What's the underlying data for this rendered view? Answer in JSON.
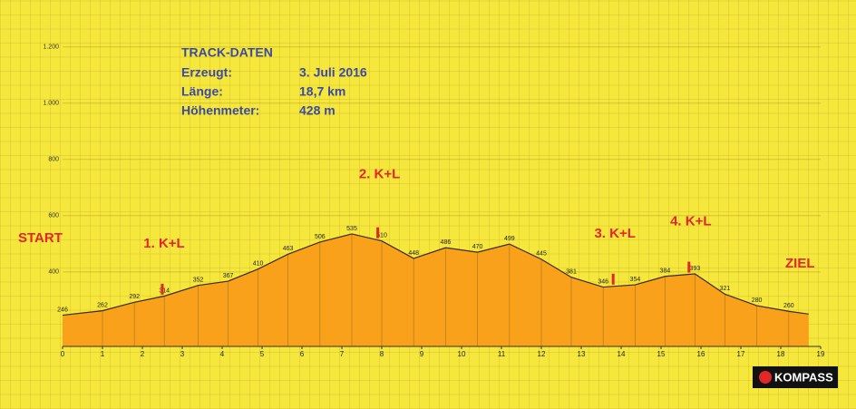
{
  "chart_data": {
    "type": "area",
    "x": [
      0,
      1.0,
      1.8,
      2.55,
      3.4,
      4.15,
      4.9,
      5.65,
      6.45,
      7.25,
      8.0,
      8.8,
      9.6,
      10.4,
      11.2,
      12.0,
      12.75,
      13.55,
      14.35,
      15.1,
      15.85,
      16.6,
      17.4,
      18.2,
      18.7
    ],
    "values": [
      246,
      262,
      292,
      314,
      352,
      367,
      410,
      463,
      506,
      535,
      510,
      448,
      486,
      470,
      499,
      445,
      381,
      346,
      354,
      384,
      393,
      321,
      280,
      260,
      250
    ],
    "value_labels": [
      "246",
      "262",
      "292",
      "314",
      "352",
      "367",
      "410",
      "463",
      "506",
      "535",
      "510",
      "448",
      "486",
      "470",
      "499",
      "445",
      "381",
      "346",
      "354",
      "384",
      "393",
      "321",
      "280",
      "260",
      null
    ],
    "color": "#f9a11b",
    "line_color": "#3a2a10",
    "xlim": [
      0,
      19
    ],
    "xticks": [
      0,
      1,
      2,
      3,
      4,
      5,
      6,
      7,
      8,
      9,
      10,
      11,
      12,
      13,
      14,
      15,
      16,
      17,
      18,
      19
    ],
    "ylim": [
      135,
      1270
    ],
    "yticks": [
      400,
      600,
      800,
      {
        "value": 1000,
        "label": "1.000"
      },
      {
        "value": 1200,
        "label": "1.200"
      }
    ],
    "grid": true,
    "annotations": [
      {
        "text": "1. K+L",
        "x": 2.5
      },
      {
        "text": "2. K+L",
        "x": 7.9
      },
      {
        "text": "3. K+L",
        "x": 13.8
      },
      {
        "text": "4. K+L",
        "x": 15.7
      }
    ],
    "start_label": "START",
    "end_label": "ZIEL"
  },
  "track_info": {
    "title": "TRACK-DATEN",
    "rows": [
      [
        "Erzeugt:",
        "3. Juli 2016"
      ],
      [
        "Länge:",
        "18,7 km"
      ],
      [
        "Höhenmeter:",
        "428 m"
      ]
    ]
  },
  "logo": "KOMPASS"
}
